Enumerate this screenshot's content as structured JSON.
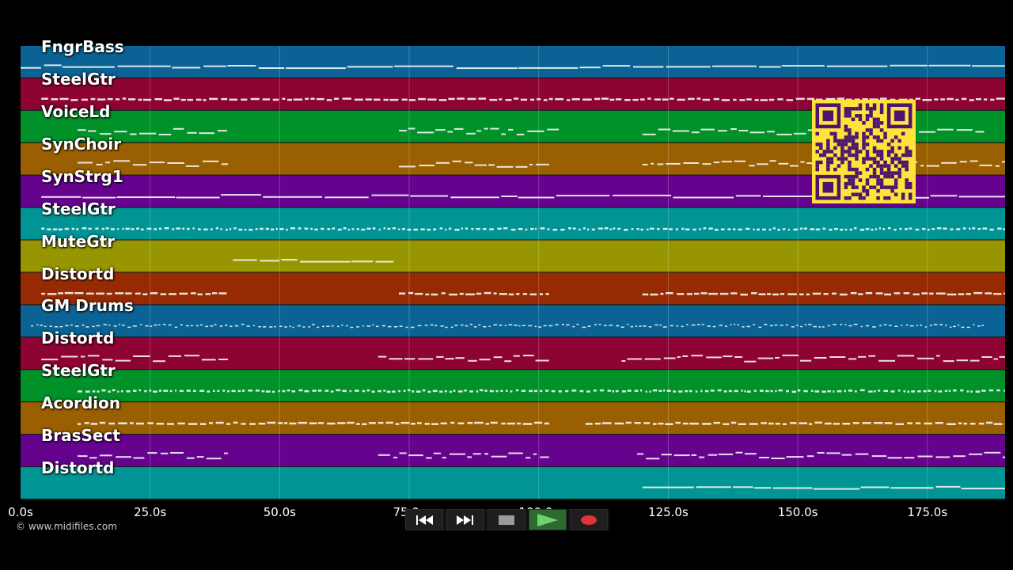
{
  "copyright": "© www.midifiles.com",
  "timeline": {
    "duration_s": 190,
    "ticks": [
      {
        "value": 0,
        "label": "0.0s"
      },
      {
        "value": 25,
        "label": "25.0s"
      },
      {
        "value": 50,
        "label": "50.0s"
      },
      {
        "value": 75,
        "label": "75.0s"
      },
      {
        "value": 100,
        "label": "100.0s"
      },
      {
        "value": 125,
        "label": "125.0s"
      },
      {
        "value": 150,
        "label": "150.0s"
      },
      {
        "value": 175,
        "label": "175.0s"
      }
    ]
  },
  "tracks": [
    {
      "name": "FngrBass",
      "color": "#0a6394",
      "segments": [
        [
          0,
          190
        ]
      ],
      "pattern": "line"
    },
    {
      "name": "SteelGtr",
      "color": "#8d0333",
      "segments": [
        [
          4,
          190
        ]
      ],
      "pattern": "dense"
    },
    {
      "name": "VoiceLd",
      "color": "#009129",
      "segments": [
        [
          11,
          40
        ],
        [
          73,
          104
        ],
        [
          120,
          186
        ]
      ],
      "pattern": "melody"
    },
    {
      "name": "SynChoir",
      "color": "#9a5f00",
      "segments": [
        [
          11,
          40
        ],
        [
          73,
          102
        ],
        [
          120,
          190
        ]
      ],
      "pattern": "melody"
    },
    {
      "name": "SynStrg1",
      "color": "#65038f",
      "segments": [
        [
          4,
          190
        ]
      ],
      "pattern": "line"
    },
    {
      "name": "SteelGtr",
      "color": "#009494",
      "segments": [
        [
          4,
          190
        ]
      ],
      "pattern": "dots"
    },
    {
      "name": "MuteGtr",
      "color": "#989600",
      "segments": [
        [
          41,
          72
        ]
      ],
      "pattern": "line"
    },
    {
      "name": "Distortd",
      "color": "#962a02",
      "segments": [
        [
          4,
          40
        ],
        [
          73,
          102
        ],
        [
          120,
          190
        ]
      ],
      "pattern": "dense"
    },
    {
      "name": "GM Drums",
      "color": "#0a6394",
      "segments": [
        [
          2,
          186
        ]
      ],
      "pattern": "drums"
    },
    {
      "name": "Distortd",
      "color": "#8d0333",
      "segments": [
        [
          4,
          40
        ],
        [
          69,
          102
        ],
        [
          116,
          190
        ]
      ],
      "pattern": "melody"
    },
    {
      "name": "SteelGtr",
      "color": "#009129",
      "segments": [
        [
          11,
          190
        ]
      ],
      "pattern": "dots"
    },
    {
      "name": "Acordion",
      "color": "#9a5f00",
      "segments": [
        [
          11,
          102
        ],
        [
          109,
          190
        ]
      ],
      "pattern": "dense"
    },
    {
      "name": "BrasSect",
      "color": "#65038f",
      "segments": [
        [
          11,
          40
        ],
        [
          69,
          102
        ],
        [
          119,
          190
        ]
      ],
      "pattern": "melody"
    },
    {
      "name": "Distortd",
      "color": "#009494",
      "segments": [
        [
          120,
          190
        ]
      ],
      "pattern": "line"
    }
  ],
  "qr_code": {
    "fg": "#4a1670",
    "bg": "#ffe33a"
  },
  "transport": {
    "buttons": [
      {
        "name": "rewind-button"
      },
      {
        "name": "fast-forward-button"
      },
      {
        "name": "stop-button"
      },
      {
        "name": "play-button"
      },
      {
        "name": "record-button"
      }
    ]
  }
}
